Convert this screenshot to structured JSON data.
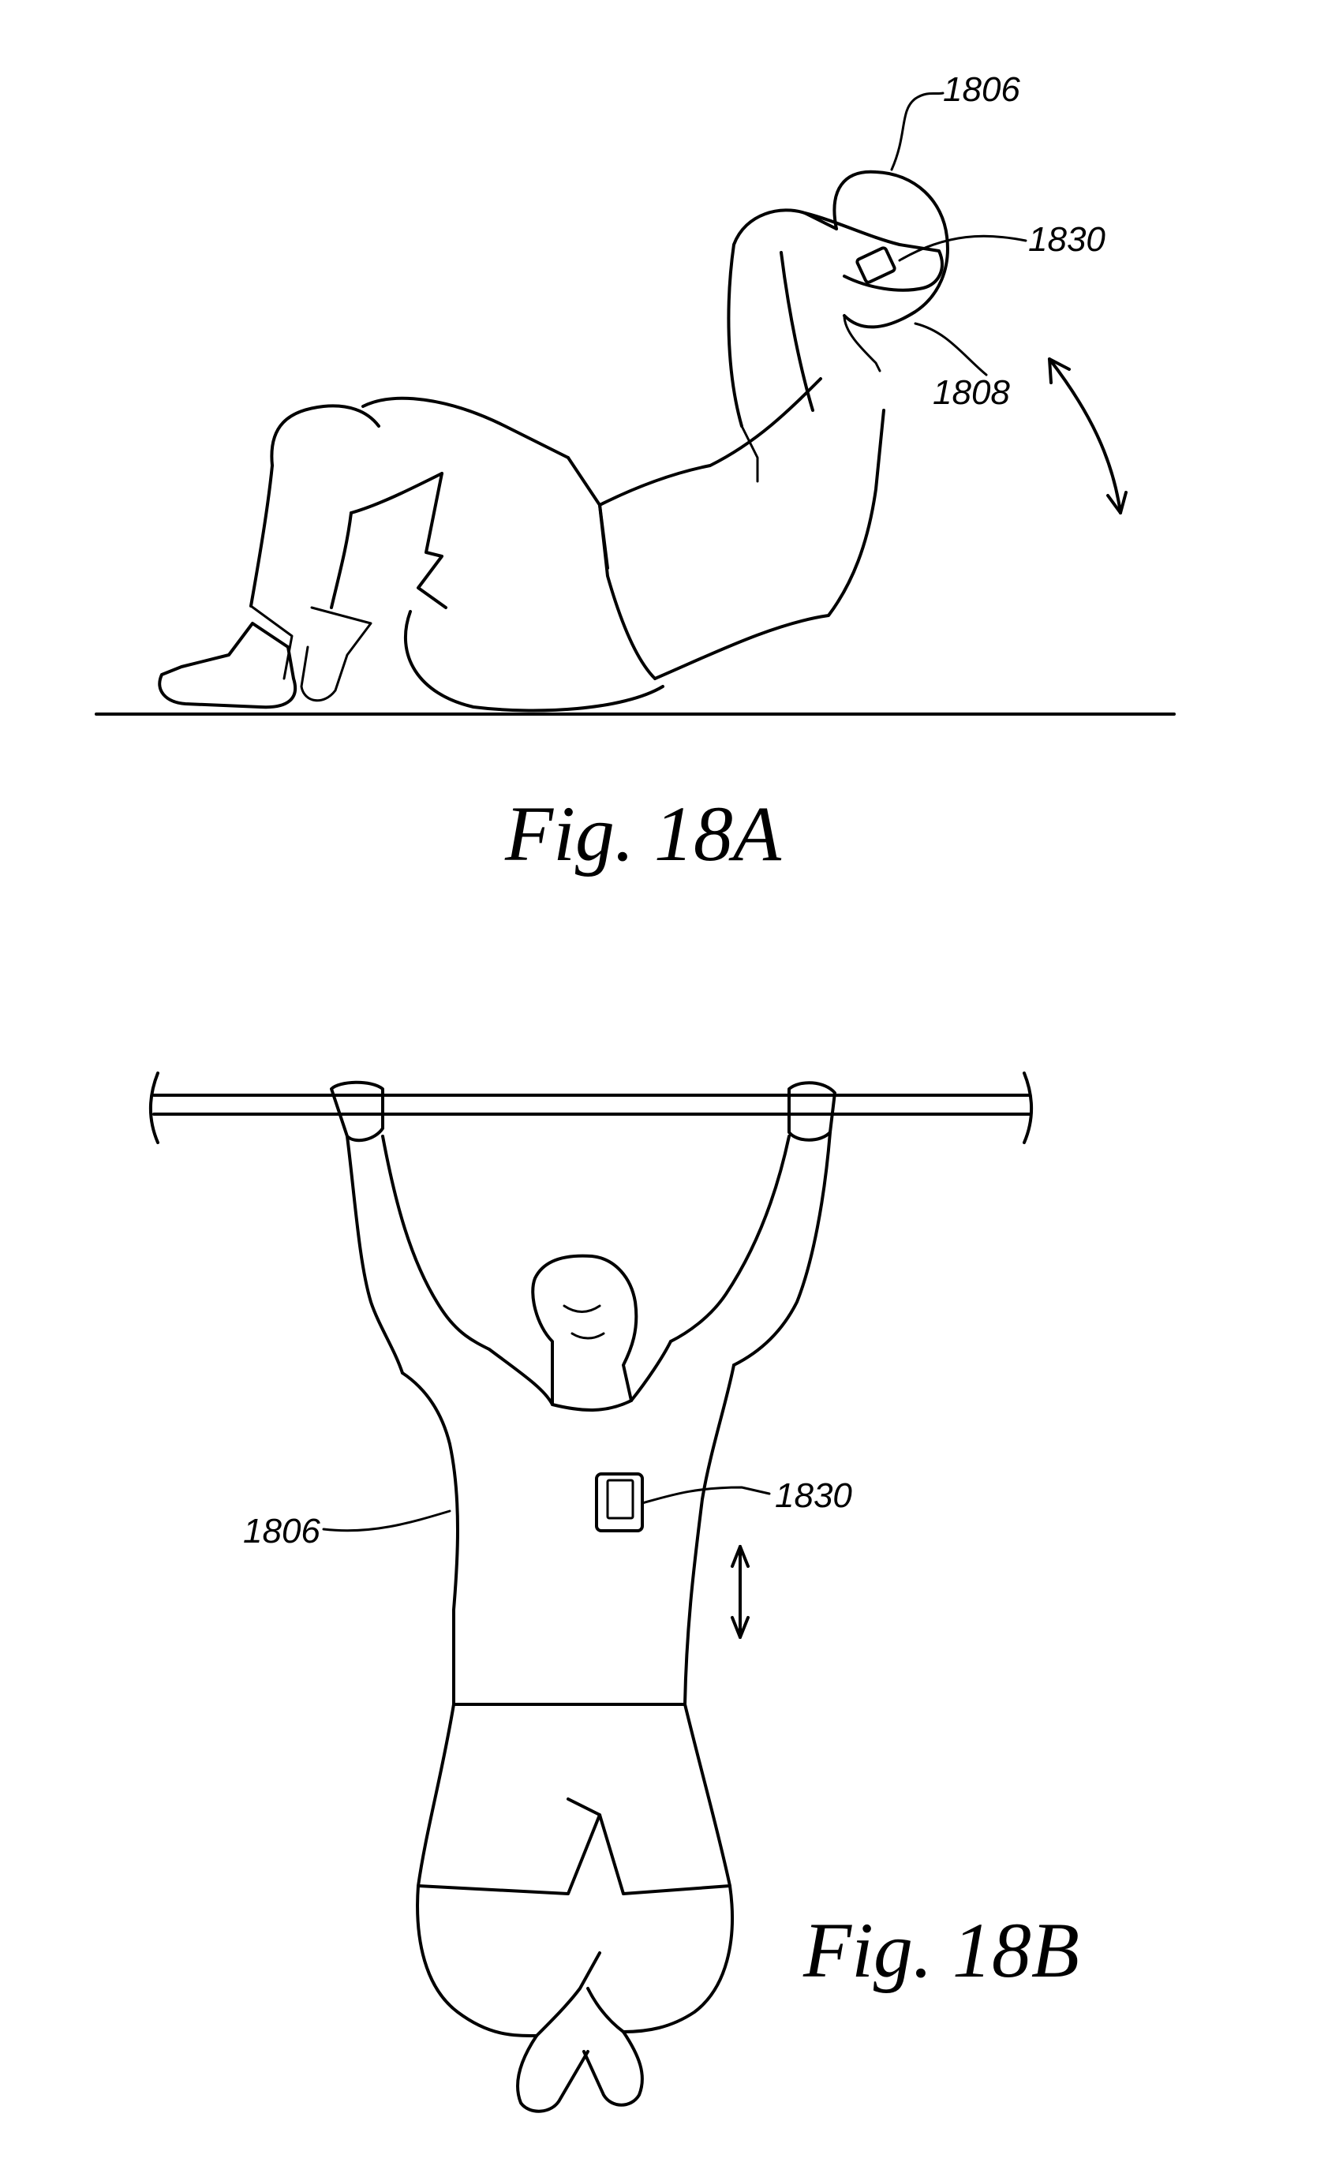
{
  "figures": [
    {
      "caption": "Fig.  18A",
      "labels": {
        "person": "1806",
        "device": "1830",
        "wrist": "1808"
      }
    },
    {
      "caption": "Fig.  18B",
      "labels": {
        "person": "1806",
        "device": "1830"
      }
    }
  ]
}
